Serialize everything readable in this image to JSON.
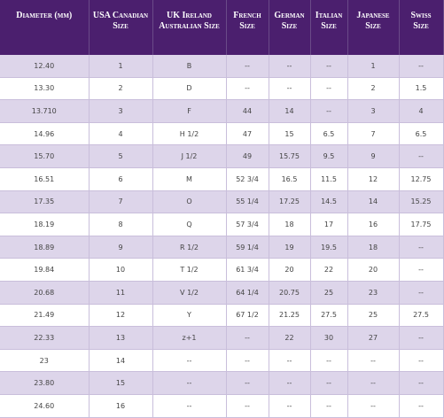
{
  "table": {
    "header": [
      "Diameter (mm)",
      "USA Canadian Size",
      "UK Ireland Australian Size",
      "French Size",
      "German Size",
      "Italian Size",
      "Japanese Size",
      "Swiss Size"
    ],
    "rows": [
      [
        "12.40",
        "1",
        "B",
        "--",
        "--",
        "--",
        "1",
        "--"
      ],
      [
        "13.30",
        "2",
        "D",
        "--",
        "--",
        "--",
        "2",
        "1.5"
      ],
      [
        "13.710",
        "3",
        "F",
        "44",
        "14",
        "--",
        "3",
        "4"
      ],
      [
        "14.96",
        "4",
        "H 1/2",
        "47",
        "15",
        "6.5",
        "7",
        "6.5"
      ],
      [
        "15.70",
        "5",
        "J 1/2",
        "49",
        "15.75",
        "9.5",
        "9",
        "--"
      ],
      [
        "16.51",
        "6",
        "M",
        "52 3/4",
        "16.5",
        "11.5",
        "12",
        "12.75"
      ],
      [
        "17.35",
        "7",
        "O",
        "55 1/4",
        "17.25",
        "14.5",
        "14",
        "15.25"
      ],
      [
        "18.19",
        "8",
        "Q",
        "57 3/4",
        "18",
        "17",
        "16",
        "17.75"
      ],
      [
        "18.89",
        "9",
        "R 1/2",
        "59 1/4",
        "19",
        "19.5",
        "18",
        "--"
      ],
      [
        "19.84",
        "10",
        "T 1/2",
        "61 3/4",
        "20",
        "22",
        "20",
        "--"
      ],
      [
        "20.68",
        "11",
        "V 1/2",
        "64 1/4",
        "20.75",
        "25",
        "23",
        "--"
      ],
      [
        "21.49",
        "12",
        "Y",
        "67 1/2",
        "21.25",
        "27.5",
        "25",
        "27.5"
      ],
      [
        "22.33",
        "13",
        "z+1",
        "--",
        "22",
        "30",
        "27",
        "--"
      ],
      [
        "23",
        "14",
        "--",
        "--",
        "--",
        "--",
        "--",
        "--"
      ],
      [
        "23.80",
        "15",
        "--",
        "--",
        "--",
        "--",
        "--",
        "--"
      ],
      [
        "24.60",
        "16",
        "--",
        "--",
        "--",
        "--",
        "--",
        "--"
      ]
    ]
  }
}
